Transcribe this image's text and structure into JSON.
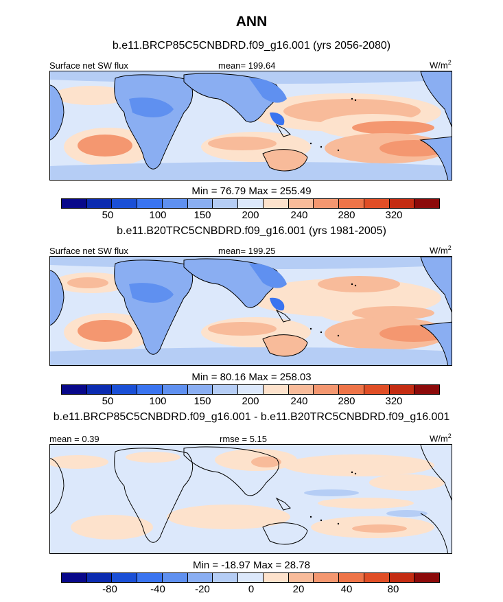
{
  "title": "ANN",
  "units_label": "W/m",
  "units_sup": "2",
  "colorbar_colors": [
    "#08088a",
    "#0b2bb0",
    "#1a4fd6",
    "#3a74f0",
    "#5f90f0",
    "#8aaef2",
    "#b5cdf5",
    "#dce8fb",
    "#fde2cc",
    "#f8bb9a",
    "#f49770",
    "#ee7448",
    "#e04e26",
    "#c42c12",
    "#8c0a0a"
  ],
  "panels": [
    {
      "case_title": "b.e11.BRCP85C5CNBDRD.f09_g16.001 (yrs 2056-2080)",
      "left_label": "Surface net SW flux",
      "center_label": "mean= 199.64",
      "min_max": "Min =  76.79 Max = 255.49",
      "ticks": [
        "50",
        "100",
        "150",
        "200",
        "240",
        "280",
        "320"
      ]
    },
    {
      "case_title": "b.e11.B20TRC5CNBDRD.f09_g16.001 (yrs 1981-2005)",
      "left_label": "Surface net SW flux",
      "center_label": "mean= 199.25",
      "min_max": "Min =  80.16 Max = 258.03",
      "ticks": [
        "50",
        "100",
        "150",
        "200",
        "240",
        "280",
        "320"
      ]
    },
    {
      "case_title": "b.e11.BRCP85C5CNBDRD.f09_g16.001 - b.e11.B20TRC5CNBDRD.f09_g16.001",
      "left_label": "mean =   0.39",
      "center_label": "rmse =   5.15",
      "min_max": "Min = -18.97 Max =  28.78",
      "ticks": [
        "-80",
        "-40",
        "-20",
        "0",
        "20",
        "40",
        "80"
      ]
    }
  ]
}
